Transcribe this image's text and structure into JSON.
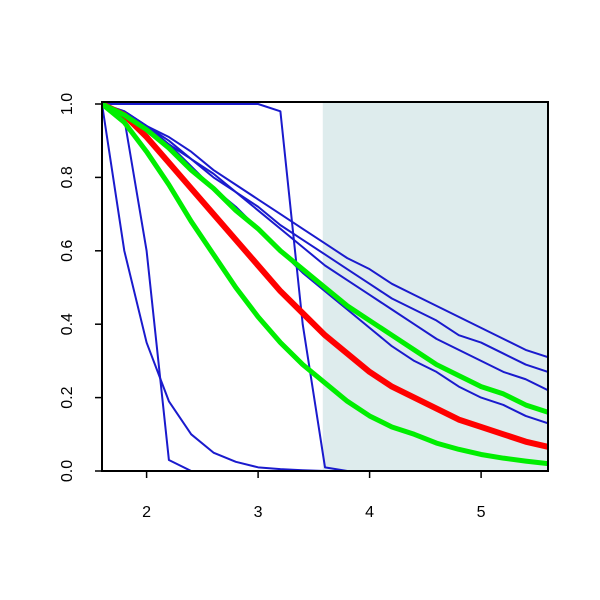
{
  "chart_data": {
    "type": "line",
    "x": [
      1.6,
      1.8,
      2.0,
      2.2,
      2.4,
      2.6,
      2.8,
      3.0,
      3.2,
      3.4,
      3.6,
      3.8,
      4.0,
      4.2,
      4.4,
      4.6,
      4.8,
      5.0,
      5.2,
      5.4,
      5.6
    ],
    "xlim": [
      1.6,
      5.6
    ],
    "xticks": [
      2,
      3,
      4,
      5
    ],
    "ylim": [
      0,
      1
    ],
    "yticks": [
      {
        "value": 0,
        "label": "0.0"
      },
      {
        "value": 0.2,
        "label": "0.2"
      },
      {
        "value": 0.4,
        "label": "0.4"
      },
      {
        "value": 0.6,
        "label": "0.6"
      },
      {
        "value": 0.8,
        "label": "0.8"
      },
      {
        "value": 1,
        "label": "1.0"
      }
    ],
    "shaded_xrange": [
      3.58,
      5.6
    ],
    "shade_color": "#deeced",
    "series": [
      {
        "color": "#1a1acd",
        "line_width": 2,
        "values": [
          1,
          0.96,
          0.6,
          0.03,
          0,
          0,
          0,
          0,
          0,
          0,
          0,
          0,
          0,
          0,
          0,
          0,
          0,
          0,
          0,
          0,
          0
        ]
      },
      {
        "color": "#1a1acd",
        "line_width": 2,
        "values": [
          1,
          0.6,
          0.35,
          0.19,
          0.1,
          0.05,
          0.025,
          0.01,
          0.005,
          0.002,
          0,
          0,
          0,
          0,
          0,
          0,
          0,
          0,
          0,
          0,
          0
        ]
      },
      {
        "color": "#1a1acd",
        "line_width": 2,
        "values": [
          1,
          1,
          1,
          1,
          1,
          1,
          1,
          1,
          0.98,
          0.4,
          0.01,
          0,
          0,
          0,
          0,
          0,
          0,
          0,
          0,
          0,
          0
        ]
      },
      {
        "color": "#1a1acd",
        "line_width": 2,
        "values": [
          1,
          0.98,
          0.94,
          0.91,
          0.87,
          0.82,
          0.78,
          0.74,
          0.7,
          0.66,
          0.62,
          0.58,
          0.55,
          0.51,
          0.48,
          0.45,
          0.42,
          0.39,
          0.36,
          0.33,
          0.31
        ]
      },
      {
        "color": "#1a1acd",
        "line_width": 2,
        "values": [
          1,
          0.97,
          0.94,
          0.89,
          0.85,
          0.81,
          0.76,
          0.72,
          0.67,
          0.63,
          0.59,
          0.55,
          0.51,
          0.47,
          0.44,
          0.41,
          0.37,
          0.35,
          0.32,
          0.29,
          0.27
        ]
      },
      {
        "color": "#1a1acd",
        "line_width": 2,
        "values": [
          1,
          0.98,
          0.94,
          0.9,
          0.85,
          0.8,
          0.76,
          0.71,
          0.66,
          0.61,
          0.56,
          0.52,
          0.48,
          0.44,
          0.4,
          0.36,
          0.33,
          0.3,
          0.27,
          0.25,
          0.22
        ]
      },
      {
        "color": "#1a1acd",
        "line_width": 2,
        "values": [
          1,
          0.98,
          0.94,
          0.89,
          0.83,
          0.77,
          0.72,
          0.66,
          0.6,
          0.54,
          0.49,
          0.44,
          0.39,
          0.34,
          0.3,
          0.27,
          0.23,
          0.2,
          0.18,
          0.15,
          0.13
        ]
      },
      {
        "color": "#ff0000",
        "line_width": 6,
        "values": [
          1,
          0.97,
          0.91,
          0.84,
          0.77,
          0.7,
          0.63,
          0.56,
          0.49,
          0.43,
          0.37,
          0.32,
          0.27,
          0.23,
          0.2,
          0.17,
          0.14,
          0.12,
          0.1,
          0.08,
          0.066
        ]
      },
      {
        "color": "#00ee00",
        "line_width": 5,
        "values": [
          1,
          0.97,
          0.93,
          0.88,
          0.82,
          0.77,
          0.71,
          0.66,
          0.6,
          0.55,
          0.5,
          0.45,
          0.41,
          0.37,
          0.33,
          0.29,
          0.26,
          0.23,
          0.21,
          0.18,
          0.16
        ]
      },
      {
        "color": "#00ee00",
        "line_width": 5,
        "values": [
          1,
          0.95,
          0.87,
          0.78,
          0.68,
          0.59,
          0.5,
          0.42,
          0.35,
          0.29,
          0.24,
          0.19,
          0.15,
          0.12,
          0.1,
          0.076,
          0.059,
          0.045,
          0.035,
          0.027,
          0.02
        ]
      }
    ]
  }
}
